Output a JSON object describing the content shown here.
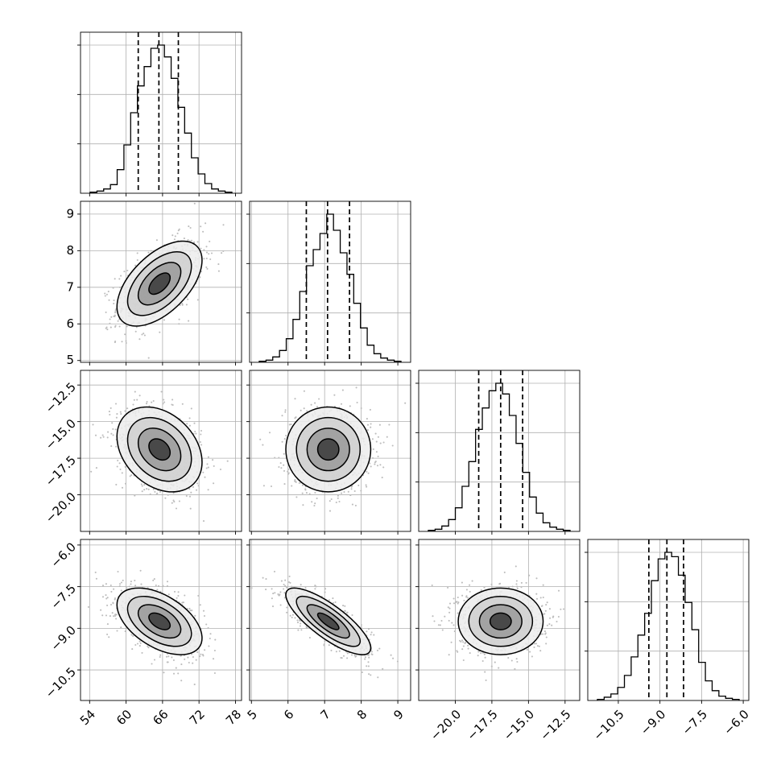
{
  "chart_data": {
    "type": "corner",
    "title": "",
    "parameters": [
      {
        "xlim": [
          52.5,
          79
        ],
        "ylim": [
          5,
          9.2
        ],
        "xticks": [
          54,
          60,
          66,
          72,
          78
        ],
        "xtick_labels": [
          "54",
          "60",
          "66",
          "72",
          "78"
        ],
        "mean": 65.5,
        "sd": 3.5,
        "quantiles": [
          62,
          65.4,
          68.6
        ]
      },
      {
        "xlim": [
          4.95,
          9.35
        ],
        "ylim": [
          4.95,
          9.35
        ],
        "xticks": [
          5,
          6,
          7,
          8,
          9
        ],
        "xtick_labels": [
          "5",
          "6",
          "7",
          "8",
          "9"
        ],
        "mean": 7.1,
        "sd": 0.58,
        "quantiles": [
          6.5,
          7.08,
          7.68
        ]
      },
      {
        "xlim": [
          -22.5,
          -11.5
        ],
        "ylim": [
          -22.5,
          -11.5
        ],
        "xticks": [
          -20,
          -17.5,
          -15,
          -12.5
        ],
        "xtick_labels": [
          "−20.0",
          "−17.5",
          "−15.0",
          "−12.5"
        ],
        "mean": -16.9,
        "sd": 1.45,
        "quantiles": [
          -18.4,
          -16.9,
          -15.4
        ]
      },
      {
        "xlim": [
          -11.6,
          -5.8
        ],
        "ylim": [
          -11.6,
          -5.8
        ],
        "xticks": [
          -10.5,
          -9,
          -7.5,
          -6
        ],
        "xtick_labels": [
          "−10.5",
          "−9.0",
          "−7.5",
          "−6.0"
        ],
        "mean": -8.75,
        "sd": 0.6,
        "quantiles": [
          -9.4,
          -8.75,
          -8.15
        ]
      }
    ],
    "yaxis_ticks": {
      "1": {
        "values": [
          5,
          6,
          7,
          8,
          9
        ],
        "labels": [
          "5",
          "6",
          "7",
          "8",
          "9"
        ]
      },
      "2": {
        "values": [
          -20,
          -17.5,
          -15,
          -12.5
        ],
        "labels": [
          "−20.0",
          "−17.5",
          "−15.0",
          "−12.5"
        ]
      },
      "3": {
        "values": [
          -10.5,
          -9,
          -7.5,
          -6
        ],
        "labels": [
          "−10.5",
          "−9.0",
          "−7.5",
          "−6.0"
        ]
      }
    },
    "correlations": {
      "1,0": 0.55,
      "2,0": -0.3,
      "2,1": 0.0,
      "3,0": -0.5,
      "3,1": -0.8,
      "3,2": 0.0
    },
    "histograms": [
      [
        1,
        2,
        4,
        8,
        22,
        45,
        75,
        100,
        118,
        135,
        138,
        127,
        107,
        80,
        56,
        33,
        18,
        9,
        4,
        2,
        1
      ],
      [
        1,
        2,
        5,
        11,
        22,
        40,
        66,
        90,
        105,
        120,
        138,
        123,
        102,
        82,
        55,
        32,
        16,
        8,
        4,
        2,
        1
      ],
      [
        1,
        2,
        5,
        11,
        22,
        42,
        65,
        95,
        115,
        131,
        138,
        128,
        108,
        82,
        55,
        32,
        17,
        8,
        4,
        2,
        1
      ],
      [
        1,
        3,
        6,
        12,
        23,
        40,
        60,
        80,
        110,
        130,
        136,
        132,
        115,
        90,
        65,
        35,
        18,
        9,
        4,
        2,
        1
      ]
    ],
    "grid": true,
    "legend": "none"
  }
}
